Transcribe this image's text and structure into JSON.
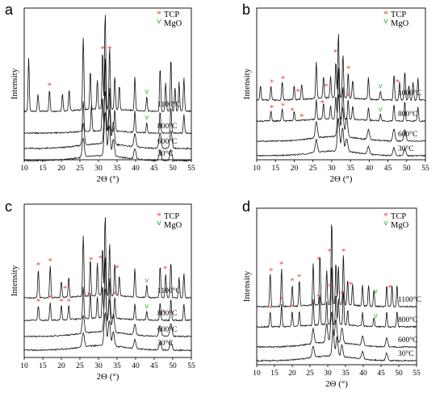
{
  "chart_data": [
    {
      "panel": "a",
      "type": "line",
      "xlabel": "2Θ (°)",
      "ylabel": "Intensity",
      "xlim": [
        10,
        55
      ],
      "x_ticks": [
        10,
        15,
        20,
        25,
        30,
        35,
        40,
        45,
        50,
        55
      ],
      "legend": [
        {
          "label": "TCP",
          "marker": "*",
          "color": "#e8413c"
        },
        {
          "label": "MgO",
          "marker": "v",
          "color": "#3cb43c"
        }
      ],
      "series": [
        {
          "name": "1100°C",
          "peaks": [
            [
              11.2,
              0.55
            ],
            [
              13.7,
              0.18
            ],
            [
              16.8,
              0.22
            ],
            [
              20.3,
              0.18
            ],
            [
              22.1,
              0.22
            ],
            [
              25.9,
              0.75
            ],
            [
              27.8,
              0.4
            ],
            [
              29.7,
              0.3
            ],
            [
              31.1,
              0.6
            ],
            [
              31.8,
              1.0
            ],
            [
              33.0,
              0.65
            ],
            [
              34.4,
              0.35
            ],
            [
              35.6,
              0.25
            ],
            [
              39.8,
              0.35
            ],
            [
              43.0,
              0.15
            ],
            [
              46.6,
              0.45
            ],
            [
              48.1,
              0.3
            ],
            [
              49.5,
              0.55
            ],
            [
              50.6,
              0.25
            ],
            [
              51.7,
              0.3
            ],
            [
              53.0,
              0.35
            ]
          ]
        },
        {
          "name": "800°C",
          "peaks": [
            [
              25.9,
              0.35
            ],
            [
              28.1,
              0.3
            ],
            [
              31.1,
              0.4
            ],
            [
              31.8,
              0.85
            ],
            [
              33.0,
              0.5
            ],
            [
              34.4,
              0.25
            ],
            [
              39.8,
              0.25
            ],
            [
              43.0,
              0.12
            ],
            [
              46.6,
              0.25
            ],
            [
              49.5,
              0.3
            ],
            [
              53.0,
              0.22
            ]
          ]
        },
        {
          "name": "600°C",
          "peaks": [
            [
              25.9,
              0.25
            ],
            [
              31.8,
              0.6
            ],
            [
              32.9,
              0.4
            ],
            [
              34.0,
              0.25
            ],
            [
              39.8,
              0.15
            ],
            [
              46.6,
              0.18
            ],
            [
              49.5,
              0.2
            ]
          ]
        },
        {
          "name": "30°C",
          "peaks": [
            [
              25.9,
              0.22
            ],
            [
              31.8,
              0.5
            ],
            [
              32.9,
              0.35
            ],
            [
              34.0,
              0.2
            ],
            [
              39.8,
              0.12
            ],
            [
              46.6,
              0.12
            ],
            [
              49.5,
              0.12
            ]
          ]
        }
      ],
      "tcp_markers": [
        [
          16.8,
          "1100°C"
        ],
        [
          31.1,
          "1100°C"
        ],
        [
          33.0,
          "1100°C"
        ]
      ],
      "mgo_markers": [
        [
          43.0,
          "1100°C"
        ],
        [
          43.0,
          "800°C"
        ]
      ]
    },
    {
      "panel": "b",
      "type": "line",
      "xlabel": "2Θ (°)",
      "ylabel": "Intensity",
      "xlim": [
        10,
        55
      ],
      "x_ticks": [
        10,
        15,
        20,
        25,
        30,
        35,
        40,
        45,
        50,
        55
      ],
      "legend": [
        {
          "label": "TCP",
          "marker": "*",
          "color": "#e8413c"
        },
        {
          "label": "MgO",
          "marker": "v",
          "color": "#3cb43c"
        }
      ],
      "series": [
        {
          "name": "1000°C",
          "peaks": [
            [
              11.0,
              0.2
            ],
            [
              13.8,
              0.2
            ],
            [
              16.8,
              0.25
            ],
            [
              20.0,
              0.2
            ],
            [
              22.0,
              0.2
            ],
            [
              25.9,
              0.5
            ],
            [
              27.8,
              0.3
            ],
            [
              29.7,
              0.3
            ],
            [
              31.1,
              0.5
            ],
            [
              31.8,
              0.9
            ],
            [
              33.0,
              0.6
            ],
            [
              34.4,
              0.35
            ],
            [
              35.6,
              0.25
            ],
            [
              39.8,
              0.3
            ],
            [
              43.0,
              0.12
            ],
            [
              46.6,
              0.35
            ],
            [
              48.1,
              0.25
            ],
            [
              49.5,
              0.4
            ],
            [
              50.6,
              0.2
            ],
            [
              51.7,
              0.25
            ],
            [
              53.0,
              0.3
            ]
          ]
        },
        {
          "name": "800°C",
          "peaks": [
            [
              13.8,
              0.15
            ],
            [
              16.8,
              0.18
            ],
            [
              20.0,
              0.15
            ],
            [
              25.9,
              0.3
            ],
            [
              27.8,
              0.25
            ],
            [
              29.7,
              0.2
            ],
            [
              31.1,
              0.35
            ],
            [
              31.8,
              0.8
            ],
            [
              33.0,
              0.5
            ],
            [
              34.4,
              0.3
            ],
            [
              35.6,
              0.2
            ],
            [
              39.8,
              0.2
            ],
            [
              43.0,
              0.1
            ],
            [
              46.6,
              0.25
            ],
            [
              49.5,
              0.3
            ],
            [
              53.0,
              0.22
            ]
          ]
        },
        {
          "name": "600°C",
          "peaks": [
            [
              25.9,
              0.25
            ],
            [
              31.8,
              0.65
            ],
            [
              32.9,
              0.45
            ],
            [
              34.0,
              0.3
            ],
            [
              39.8,
              0.15
            ],
            [
              46.6,
              0.18
            ],
            [
              49.5,
              0.18
            ]
          ]
        },
        {
          "name": "30°C",
          "peaks": [
            [
              25.9,
              0.2
            ],
            [
              31.8,
              0.5
            ],
            [
              32.9,
              0.35
            ],
            [
              34.0,
              0.2
            ],
            [
              39.8,
              0.12
            ],
            [
              46.6,
              0.12
            ],
            [
              49.5,
              0.12
            ]
          ]
        }
      ],
      "tcp_markers": [
        [
          14.0,
          "1000°C"
        ],
        [
          17.0,
          "1000°C"
        ],
        [
          21.0,
          "1000°C"
        ],
        [
          28.5,
          "1000°C"
        ],
        [
          31.0,
          "1000°C"
        ],
        [
          34.5,
          "1000°C"
        ],
        [
          47.5,
          "1000°C"
        ],
        [
          14.0,
          "800°C"
        ],
        [
          17.0,
          "800°C"
        ],
        [
          19.5,
          "800°C"
        ],
        [
          22.0,
          "800°C"
        ],
        [
          27.5,
          "800°C"
        ],
        [
          34.5,
          "800°C"
        ]
      ],
      "mgo_markers": [
        [
          43.0,
          "1000°C"
        ],
        [
          43.0,
          "800°C"
        ]
      ]
    },
    {
      "panel": "c",
      "type": "line",
      "xlabel": "2Θ (°)",
      "ylabel": "Intensity",
      "xlim": [
        10,
        55
      ],
      "x_ticks": [
        10,
        15,
        20,
        25,
        30,
        35,
        40,
        45,
        50,
        55
      ],
      "legend": [
        {
          "label": "TCP",
          "marker": "*",
          "color": "#e8413c"
        },
        {
          "label": "MgO",
          "marker": "v",
          "color": "#3cb43c"
        }
      ],
      "series": [
        {
          "name": "1100°C",
          "peaks": [
            [
              13.8,
              0.35
            ],
            [
              17.0,
              0.4
            ],
            [
              20.0,
              0.2
            ],
            [
              22.0,
              0.25
            ],
            [
              25.9,
              0.75
            ],
            [
              27.8,
              0.45
            ],
            [
              29.7,
              0.4
            ],
            [
              31.1,
              0.6
            ],
            [
              31.8,
              1.0
            ],
            [
              33.0,
              0.65
            ],
            [
              34.4,
              0.4
            ],
            [
              35.6,
              0.25
            ],
            [
              39.8,
              0.35
            ],
            [
              43.0,
              0.15
            ],
            [
              46.6,
              0.4
            ],
            [
              48.1,
              0.3
            ],
            [
              49.5,
              0.45
            ],
            [
              51.7,
              0.25
            ],
            [
              53.0,
              0.3
            ]
          ]
        },
        {
          "name": "800°C",
          "peaks": [
            [
              13.8,
              0.2
            ],
            [
              17.0,
              0.25
            ],
            [
              20.0,
              0.2
            ],
            [
              22.0,
              0.2
            ],
            [
              25.9,
              0.45
            ],
            [
              27.8,
              0.35
            ],
            [
              29.7,
              0.3
            ],
            [
              31.1,
              0.45
            ],
            [
              31.8,
              0.85
            ],
            [
              33.0,
              0.55
            ],
            [
              34.4,
              0.3
            ],
            [
              39.8,
              0.22
            ],
            [
              43.0,
              0.12
            ],
            [
              46.6,
              0.25
            ],
            [
              49.5,
              0.3
            ],
            [
              53.0,
              0.22
            ]
          ]
        },
        {
          "name": "600°C",
          "peaks": [
            [
              25.9,
              0.25
            ],
            [
              31.8,
              0.6
            ],
            [
              32.9,
              0.45
            ],
            [
              34.0,
              0.25
            ],
            [
              39.8,
              0.15
            ],
            [
              46.6,
              0.15
            ],
            [
              49.5,
              0.18
            ]
          ]
        },
        {
          "name": "30°C",
          "peaks": [
            [
              25.9,
              0.2
            ],
            [
              31.8,
              0.45
            ],
            [
              32.9,
              0.35
            ],
            [
              34.0,
              0.2
            ],
            [
              39.8,
              0.12
            ],
            [
              46.6,
              0.12
            ],
            [
              49.5,
              0.12
            ]
          ]
        }
      ],
      "tcp_markers": [
        [
          13.8,
          "1100°C"
        ],
        [
          17.0,
          "1100°C"
        ],
        [
          21.0,
          "1100°C"
        ],
        [
          28.0,
          "1100°C"
        ],
        [
          30.5,
          "1100°C"
        ],
        [
          35.0,
          "1100°C"
        ],
        [
          48.0,
          "1100°C"
        ],
        [
          13.8,
          "800°C"
        ],
        [
          17.0,
          "800°C"
        ],
        [
          20.0,
          "800°C"
        ],
        [
          22.0,
          "800°C"
        ],
        [
          27.5,
          "800°C"
        ],
        [
          34.5,
          "800°C"
        ],
        [
          47.5,
          "800°C"
        ]
      ],
      "mgo_markers": [
        [
          43.0,
          "1100°C"
        ],
        [
          43.0,
          "800°C"
        ]
      ]
    },
    {
      "panel": "d",
      "type": "line",
      "xlabel": "2Θ (°)",
      "ylabel": "Intensity",
      "xlim": [
        10,
        55
      ],
      "x_ticks": [
        10,
        15,
        20,
        25,
        30,
        35,
        40,
        45,
        50,
        55
      ],
      "legend": [
        {
          "label": "TCP",
          "marker": "*",
          "color": "#e8413c"
        },
        {
          "label": "MgO",
          "marker": "v",
          "color": "#3cb43c"
        }
      ],
      "series": [
        {
          "name": "1100°C",
          "peaks": [
            [
              13.8,
              0.4
            ],
            [
              17.0,
              0.45
            ],
            [
              20.0,
              0.25
            ],
            [
              22.0,
              0.3
            ],
            [
              25.9,
              0.5
            ],
            [
              27.8,
              0.6
            ],
            [
              29.7,
              0.4
            ],
            [
              31.1,
              1.0
            ],
            [
              32.3,
              0.5
            ],
            [
              33.0,
              0.45
            ],
            [
              34.4,
              0.6
            ],
            [
              35.6,
              0.3
            ],
            [
              37.0,
              0.25
            ],
            [
              39.8,
              0.25
            ],
            [
              41.5,
              0.25
            ],
            [
              43.0,
              0.2
            ],
            [
              46.6,
              0.25
            ],
            [
              48.1,
              0.25
            ],
            [
              49.5,
              0.25
            ]
          ]
        },
        {
          "name": "800°C",
          "peaks": [
            [
              13.8,
              0.2
            ],
            [
              17.0,
              0.3
            ],
            [
              20.0,
              0.2
            ],
            [
              22.0,
              0.2
            ],
            [
              25.9,
              0.35
            ],
            [
              27.8,
              0.4
            ],
            [
              29.7,
              0.3
            ],
            [
              31.1,
              0.8
            ],
            [
              32.3,
              0.4
            ],
            [
              33.0,
              0.35
            ],
            [
              34.4,
              0.45
            ],
            [
              35.6,
              0.2
            ],
            [
              39.8,
              0.18
            ],
            [
              43.0,
              0.12
            ],
            [
              46.6,
              0.2
            ],
            [
              49.5,
              0.2
            ]
          ]
        },
        {
          "name": "600°C",
          "peaks": [
            [
              25.9,
              0.2
            ],
            [
              29.7,
              0.25
            ],
            [
              31.1,
              0.4
            ],
            [
              32.3,
              0.3
            ],
            [
              34.0,
              0.2
            ],
            [
              39.8,
              0.12
            ],
            [
              46.6,
              0.12
            ]
          ]
        },
        {
          "name": "30°C",
          "peaks": [
            [
              25.9,
              0.15
            ],
            [
              31.5,
              0.35
            ],
            [
              32.6,
              0.25
            ],
            [
              34.0,
              0.15
            ],
            [
              39.8,
              0.1
            ],
            [
              46.6,
              0.1
            ]
          ]
        }
      ],
      "tcp_markers": [
        [
          14.0,
          "1100°C"
        ],
        [
          17.0,
          "1100°C"
        ],
        [
          20.0,
          "1100°C"
        ],
        [
          22.0,
          "1100°C"
        ],
        [
          27.5,
          "1100°C"
        ],
        [
          30.5,
          "1100°C"
        ],
        [
          34.5,
          "1100°C"
        ],
        [
          36.5,
          "1100°C"
        ],
        [
          47.5,
          "1100°C"
        ],
        [
          14.0,
          "800°C"
        ],
        [
          17.0,
          "800°C"
        ],
        [
          20.0,
          "800°C"
        ],
        [
          27.5,
          "800°C"
        ],
        [
          30.5,
          "800°C"
        ],
        [
          34.0,
          "800°C"
        ]
      ],
      "mgo_markers": [
        [
          43.5,
          "1100°C"
        ],
        [
          43.5,
          "800°C"
        ]
      ]
    }
  ]
}
